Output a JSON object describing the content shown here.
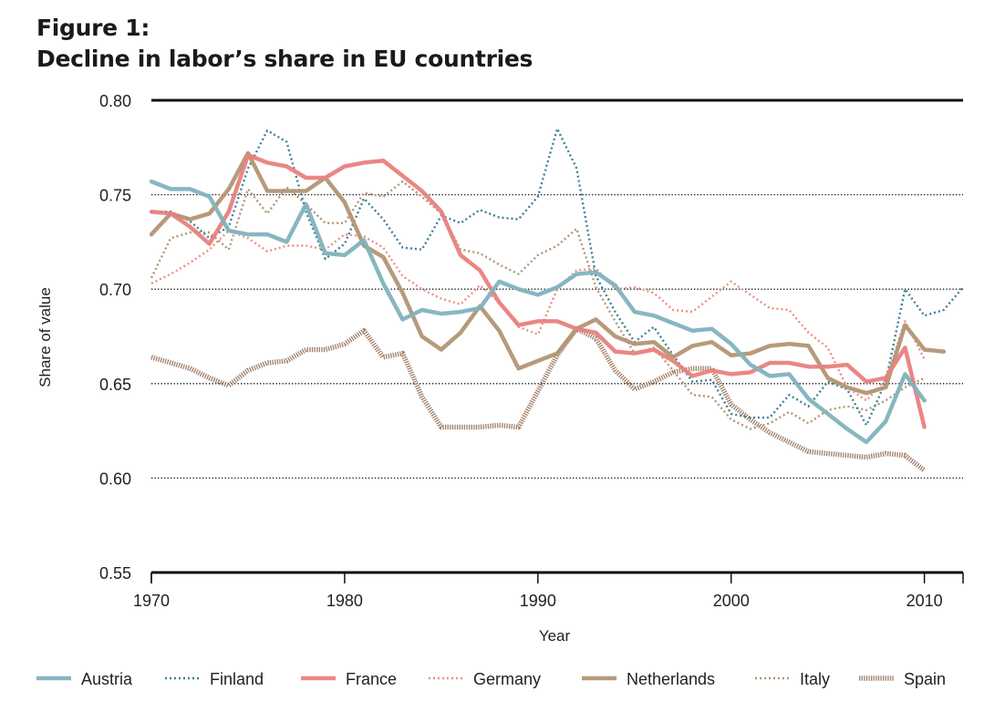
{
  "header": {
    "title_line1": "Figure 1:",
    "title_line2": "Decline in labor’s share in EU countries"
  },
  "chart_data": {
    "type": "line",
    "title": "Figure 1: Decline in labor’s share in EU countries",
    "xlabel": "Year",
    "ylabel": "Share of value",
    "xlim": [
      1970,
      2012
    ],
    "ylim": [
      0.55,
      0.8
    ],
    "x_ticks": [
      1970,
      1980,
      1990,
      2000,
      2010
    ],
    "y_ticks": [
      0.55,
      0.6,
      0.65,
      0.7,
      0.75,
      0.8
    ],
    "y_tick_labels": [
      "0.55",
      "0.60",
      "0.65",
      "0.70",
      "0.75",
      "0.80"
    ],
    "grid": "horizontal dotted at 0.60, 0.65, 0.70, 0.75; solid at 0.55 and 0.80",
    "legend_position": "bottom",
    "series": [
      {
        "name": "Austria",
        "color": "#7fb3bd",
        "style": "solid-thick",
        "x": [
          1970,
          1971,
          1972,
          1973,
          1974,
          1975,
          1976,
          1977,
          1978,
          1979,
          1980,
          1981,
          1982,
          1983,
          1984,
          1985,
          1986,
          1987,
          1988,
          1989,
          1990,
          1991,
          1992,
          1993,
          1994,
          1995,
          1996,
          1997,
          1998,
          1999,
          2000,
          2001,
          2002,
          2003,
          2004,
          2005,
          2006,
          2007,
          2008,
          2009,
          2010
        ],
        "y": [
          0.757,
          0.753,
          0.753,
          0.749,
          0.731,
          0.729,
          0.729,
          0.725,
          0.745,
          0.719,
          0.718,
          0.726,
          0.703,
          0.684,
          0.689,
          0.687,
          0.688,
          0.69,
          0.704,
          0.7,
          0.697,
          0.701,
          0.708,
          0.709,
          0.702,
          0.688,
          0.686,
          0.682,
          0.678,
          0.679,
          0.671,
          0.66,
          0.654,
          0.655,
          0.642,
          0.634,
          0.626,
          0.619,
          0.63,
          0.655,
          0.641
        ]
      },
      {
        "name": "Finland",
        "color": "#3d8097",
        "style": "dotted",
        "x": [
          1970,
          1971,
          1972,
          1973,
          1974,
          1975,
          1976,
          1977,
          1978,
          1979,
          1980,
          1981,
          1982,
          1983,
          1984,
          1985,
          1986,
          1987,
          1988,
          1989,
          1990,
          1991,
          1992,
          1993,
          1994,
          1995,
          1996,
          1997,
          1998,
          1999,
          2000,
          2001,
          2002,
          2003,
          2004,
          2005,
          2006,
          2007,
          2008,
          2009,
          2010,
          2011,
          2012
        ],
        "y": [
          0.741,
          0.741,
          0.736,
          0.727,
          0.733,
          0.764,
          0.784,
          0.778,
          0.741,
          0.716,
          0.724,
          0.748,
          0.737,
          0.722,
          0.721,
          0.739,
          0.735,
          0.742,
          0.738,
          0.737,
          0.749,
          0.785,
          0.764,
          0.707,
          0.688,
          0.672,
          0.68,
          0.665,
          0.651,
          0.652,
          0.634,
          0.632,
          0.632,
          0.644,
          0.638,
          0.651,
          0.647,
          0.628,
          0.651,
          0.7,
          0.686,
          0.689,
          0.701
        ]
      },
      {
        "name": "France",
        "color": "#e9817d",
        "style": "solid-thick",
        "x": [
          1970,
          1971,
          1972,
          1973,
          1974,
          1975,
          1976,
          1977,
          1978,
          1979,
          1980,
          1981,
          1982,
          1983,
          1984,
          1985,
          1986,
          1987,
          1988,
          1989,
          1990,
          1991,
          1992,
          1993,
          1994,
          1995,
          1996,
          1997,
          1998,
          1999,
          2000,
          2001,
          2002,
          2003,
          2004,
          2005,
          2006,
          2007,
          2008,
          2009,
          2010
        ],
        "y": [
          0.741,
          0.74,
          0.733,
          0.724,
          0.741,
          0.771,
          0.767,
          0.765,
          0.759,
          0.759,
          0.765,
          0.767,
          0.768,
          0.76,
          0.752,
          0.741,
          0.718,
          0.71,
          0.693,
          0.681,
          0.683,
          0.683,
          0.679,
          0.677,
          0.667,
          0.666,
          0.668,
          0.662,
          0.654,
          0.657,
          0.655,
          0.656,
          0.661,
          0.661,
          0.659,
          0.659,
          0.66,
          0.651,
          0.653,
          0.669,
          0.627
        ]
      },
      {
        "name": "Germany",
        "color": "#ee8d86",
        "style": "dotted",
        "x": [
          1970,
          1971,
          1972,
          1973,
          1974,
          1975,
          1976,
          1977,
          1978,
          1979,
          1980,
          1981,
          1982,
          1983,
          1984,
          1985,
          1986,
          1987,
          1988,
          1989,
          1990,
          1991,
          1992,
          1993,
          1994,
          1995,
          1996,
          1997,
          1998,
          1999,
          2000,
          2001,
          2002,
          2003,
          2004,
          2005,
          2006,
          2007,
          2008,
          2009,
          2010
        ],
        "y": [
          0.703,
          0.708,
          0.714,
          0.721,
          0.731,
          0.727,
          0.72,
          0.723,
          0.723,
          0.721,
          0.729,
          0.728,
          0.722,
          0.707,
          0.7,
          0.695,
          0.692,
          0.702,
          0.693,
          0.68,
          0.676,
          0.7,
          0.71,
          0.711,
          0.7,
          0.701,
          0.698,
          0.689,
          0.688,
          0.696,
          0.704,
          0.697,
          0.69,
          0.689,
          0.677,
          0.669,
          0.648,
          0.641,
          0.652,
          0.683,
          0.663
        ]
      },
      {
        "name": "Netherlands",
        "color": "#b29574",
        "style": "solid-thick",
        "x": [
          1970,
          1971,
          1972,
          1973,
          1974,
          1975,
          1976,
          1977,
          1978,
          1979,
          1980,
          1981,
          1982,
          1983,
          1984,
          1985,
          1986,
          1987,
          1988,
          1989,
          1990,
          1991,
          1992,
          1993,
          1994,
          1995,
          1996,
          1997,
          1998,
          1999,
          2000,
          2001,
          2002,
          2003,
          2004,
          2005,
          2006,
          2007,
          2008,
          2009,
          2010,
          2011
        ],
        "y": [
          0.729,
          0.74,
          0.737,
          0.74,
          0.753,
          0.772,
          0.752,
          0.752,
          0.752,
          0.759,
          0.746,
          0.723,
          0.717,
          0.698,
          0.675,
          0.668,
          0.677,
          0.691,
          0.678,
          0.658,
          0.662,
          0.666,
          0.679,
          0.684,
          0.675,
          0.671,
          0.672,
          0.664,
          0.67,
          0.672,
          0.665,
          0.666,
          0.67,
          0.671,
          0.67,
          0.653,
          0.648,
          0.645,
          0.648,
          0.681,
          0.668,
          0.667
        ]
      },
      {
        "name": "Italy",
        "color": "#b29574",
        "style": "dotted",
        "x": [
          1970,
          1971,
          1972,
          1973,
          1974,
          1975,
          1976,
          1977,
          1978,
          1979,
          1980,
          1981,
          1982,
          1983,
          1984,
          1985,
          1986,
          1987,
          1988,
          1989,
          1990,
          1991,
          1992,
          1993,
          1994,
          1995,
          1996,
          1997,
          1998,
          1999,
          2000,
          2001,
          2002,
          2003,
          2004,
          2005,
          2006,
          2007,
          2008,
          2009,
          2010
        ],
        "y": [
          0.706,
          0.727,
          0.73,
          0.73,
          0.721,
          0.753,
          0.74,
          0.754,
          0.745,
          0.735,
          0.735,
          0.751,
          0.749,
          0.757,
          0.749,
          0.74,
          0.721,
          0.719,
          0.713,
          0.708,
          0.718,
          0.723,
          0.732,
          0.701,
          0.683,
          0.666,
          0.669,
          0.657,
          0.644,
          0.643,
          0.631,
          0.626,
          0.629,
          0.635,
          0.629,
          0.636,
          0.638,
          0.636,
          0.641,
          0.648,
          0.653
        ]
      },
      {
        "name": "Spain",
        "color": "#a07f68",
        "style": "hatched",
        "x": [
          1970,
          1971,
          1972,
          1973,
          1974,
          1975,
          1976,
          1977,
          1978,
          1979,
          1980,
          1981,
          1982,
          1983,
          1984,
          1985,
          1986,
          1987,
          1988,
          1989,
          1990,
          1991,
          1992,
          1993,
          1994,
          1995,
          1996,
          1997,
          1998,
          1999,
          2000,
          2001,
          2002,
          2003,
          2004,
          2005,
          2006,
          2007,
          2008,
          2009,
          2010
        ],
        "y": [
          0.664,
          0.661,
          0.658,
          0.653,
          0.649,
          0.657,
          0.661,
          0.662,
          0.668,
          0.668,
          0.671,
          0.678,
          0.664,
          0.666,
          0.643,
          0.627,
          0.627,
          0.627,
          0.628,
          0.627,
          0.646,
          0.665,
          0.679,
          0.674,
          0.657,
          0.647,
          0.651,
          0.656,
          0.658,
          0.658,
          0.639,
          0.631,
          0.624,
          0.619,
          0.614,
          0.613,
          0.612,
          0.611,
          0.613,
          0.612,
          0.604
        ]
      }
    ]
  }
}
